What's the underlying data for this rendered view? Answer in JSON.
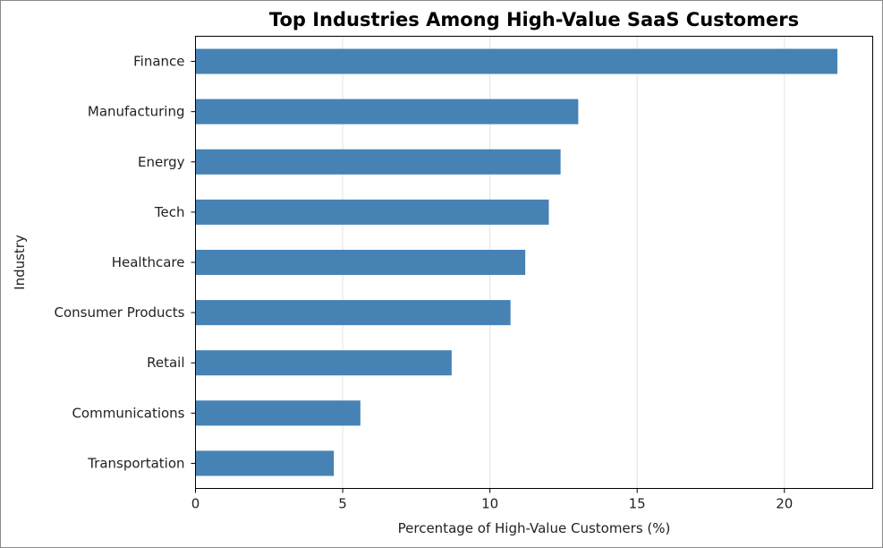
{
  "chart_data": {
    "type": "bar",
    "orientation": "horizontal",
    "title": "Top Industries Among High-Value SaaS Customers",
    "xlabel": "Percentage of High-Value Customers (%)",
    "ylabel": "Industry",
    "categories": [
      "Finance",
      "Manufacturing",
      "Energy",
      "Tech",
      "Healthcare",
      "Consumer Products",
      "Retail",
      "Communications",
      "Transportation"
    ],
    "values": [
      21.8,
      13.0,
      12.4,
      12.0,
      11.2,
      10.7,
      8.7,
      5.6,
      4.7
    ],
    "xlim": [
      0,
      23
    ],
    "xticks": [
      0,
      5,
      10,
      15,
      20
    ],
    "grid": "vertical",
    "bar_color": "#4682b4"
  }
}
